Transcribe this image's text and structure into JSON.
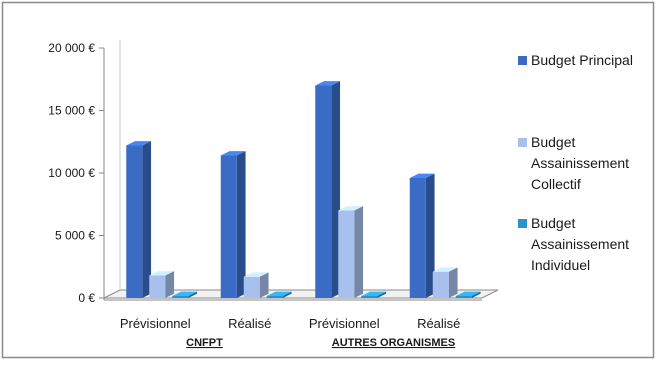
{
  "chart_data": {
    "type": "bar",
    "categories": [
      "Prévisionnel",
      "Réalisé",
      "Prévisionnel",
      "Réalisé"
    ],
    "groups": [
      {
        "label": "CNFPT",
        "categories": [
          0,
          1
        ]
      },
      {
        "label": "AUTRES ORGANISMES",
        "categories": [
          2,
          3
        ]
      }
    ],
    "series": [
      {
        "name": "Budget Principal",
        "values": [
          12200,
          11400,
          17000,
          9600
        ],
        "color": "#3a6cc6"
      },
      {
        "name": "Budget Assainissement Collectif",
        "values": [
          1800,
          1700,
          7000,
          2100
        ],
        "color": "#a8c0ee"
      },
      {
        "name": "Budget Assainissement Individuel",
        "values": [
          0,
          0,
          0,
          0
        ],
        "color": "#2a93c9"
      }
    ],
    "y_ticks": [
      "0 €",
      "5 000 €",
      "10 000 €",
      "15 000 €",
      "20 000 €"
    ],
    "ylim": [
      0,
      20000
    ],
    "legend_position": "right",
    "grid": false
  }
}
